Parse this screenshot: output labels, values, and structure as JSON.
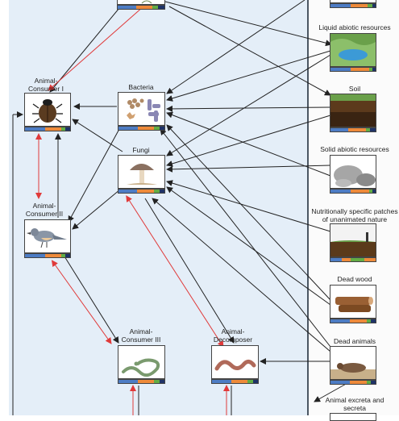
{
  "diagram": {
    "consumers": {
      "consumer_1": "Animal-\nConsumer I",
      "consumer_2": "Animal-\nConsumer II",
      "consumer_3": "Animal-\nConsumer III",
      "decomposer": "Animal-\nDecomposer"
    },
    "decomposers": {
      "bacteria": "Bacteria",
      "fungi": "Fungi"
    },
    "resources": {
      "liquid": "Liquid abiotic resources",
      "soil": "Soil",
      "solid": "Solid abiotic resources",
      "patches": "Nutritionally specific patches\nof unanimated nature",
      "dead_wood": "Dead wood",
      "dead_animals": "Dead animals",
      "excreta": "Animal excreta and\nsecreta"
    }
  },
  "colors": {
    "panel": "#e4eef8",
    "arrow": "#222222",
    "red_arrow": "#e03a3a",
    "bar_blue": "#4d7cc4",
    "bar_orange": "#ee8a3a",
    "bar_green": "#62ac44",
    "bar_navy": "#1f3367"
  }
}
